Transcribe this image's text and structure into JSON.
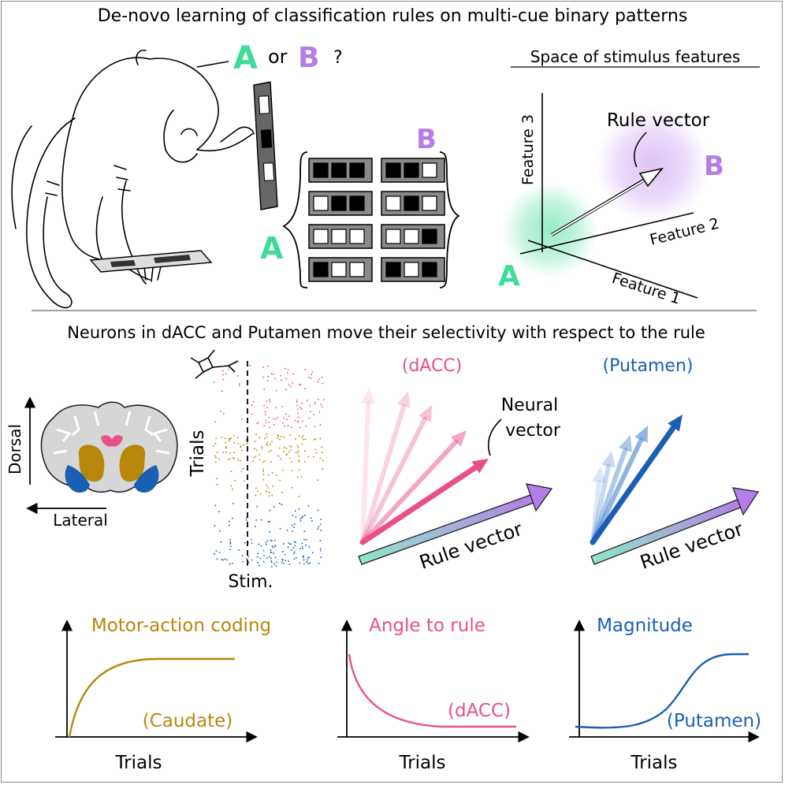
{
  "top": {
    "title": "De-novo learning of classification rules on multi-cue binary patterns",
    "question": {
      "a": "A",
      "or": "or",
      "b": "B",
      "mark": "?"
    },
    "pattern_sets": {
      "a_label": "A",
      "b_label": "B",
      "a_patterns": [
        [
          1,
          1,
          1
        ],
        [
          0,
          1,
          1
        ],
        [
          0,
          0,
          0
        ],
        [
          1,
          0,
          0
        ]
      ],
      "b_patterns": [
        [
          1,
          1,
          0
        ],
        [
          0,
          1,
          0
        ],
        [
          0,
          0,
          1
        ],
        [
          1,
          0,
          1
        ]
      ]
    },
    "feature_space": {
      "heading": "Space of stimulus features",
      "axis1": "Feature 1",
      "axis2": "Feature 2",
      "axis3": "Feature 3",
      "rule_label": "Rule vector",
      "a_label": "A",
      "b_label": "B"
    }
  },
  "middle": {
    "title": "Neurons in dACC and Putamen move their selectivity with respect to the rule",
    "brain": {
      "dorsal": "Dorsal",
      "lateral": "Lateral"
    },
    "raster": {
      "ylabel": "Trials",
      "xlabel": "Stim."
    },
    "dacc": {
      "label": "(dACC)",
      "neural_label_1": "Neural",
      "neural_label_2": "vector",
      "rule_label": "Rule vector"
    },
    "putamen": {
      "label": "(Putamen)",
      "rule_label": "Rule vector"
    }
  },
  "bottom": {
    "panels": [
      {
        "title": "Motor-action coding",
        "region": "(Caudate)",
        "xlabel": "Trials",
        "color": "#b8860b"
      },
      {
        "title": "Angle to rule",
        "region": "(dACC)",
        "xlabel": "Trials",
        "color": "#e8508a"
      },
      {
        "title": "Magnitude",
        "region": "(Putamen)",
        "xlabel": "Trials",
        "color": "#1a5fb4"
      }
    ]
  },
  "colors": {
    "teal": "#3ddc97",
    "purple": "#b47ee6",
    "pink": "#e8508a",
    "gold": "#b8860b",
    "blue": "#1a5fb4"
  }
}
